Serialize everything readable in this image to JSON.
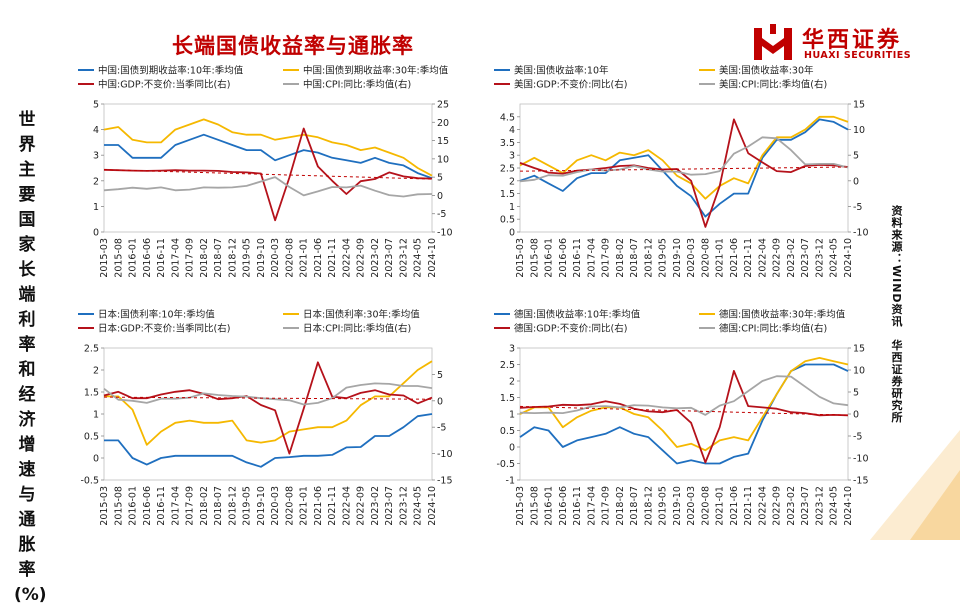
{
  "page": {
    "title": "长端国债收益率与通胀率",
    "side_label": "世界主要国家长端利率和经济增速与通胀率(%)",
    "source": "资料来源：WIND资讯　华西证券研究所"
  },
  "logo": {
    "name": "华西证券",
    "sub": "HUAXI SECURITIES",
    "icon": "huaxi-logo-icon",
    "color": "#c00000"
  },
  "colors": {
    "blue": "#1f6fbf",
    "yellow": "#f5b800",
    "red": "#b5121b",
    "gray": "#a6a6a6",
    "trend": "#c00000"
  },
  "chart_data": [
    {
      "type": "line",
      "id": "china",
      "x": [
        "2015-03",
        "2015-08",
        "2016-01",
        "2016-06",
        "2016-11",
        "2017-04",
        "2017-09",
        "2018-02",
        "2018-07",
        "2018-12",
        "2019-05",
        "2019-10",
        "2020-03",
        "2020-08",
        "2021-01",
        "2021-06",
        "2021-11",
        "2022-04",
        "2022-09",
        "2023-02",
        "2023-07",
        "2023-12",
        "2024-05",
        "2024-10"
      ],
      "ylim": [
        0,
        5
      ],
      "yticks": [
        0,
        1,
        2,
        3,
        4,
        5
      ],
      "y2lim": [
        -10,
        25
      ],
      "y2ticks": [
        -10,
        -5,
        0,
        5,
        10,
        15,
        20,
        25
      ],
      "series": [
        {
          "name": "中国:国债到期收益率:10年:季均值",
          "axis": "left",
          "color": "#1f6fbf",
          "values": [
            3.4,
            3.4,
            2.9,
            2.9,
            2.9,
            3.4,
            3.6,
            3.8,
            3.6,
            3.4,
            3.2,
            3.2,
            2.8,
            3.0,
            3.2,
            3.1,
            2.9,
            2.8,
            2.7,
            2.9,
            2.7,
            2.6,
            2.3,
            2.1
          ]
        },
        {
          "name": "中国:国债到期收益率:30年:季均值",
          "axis": "left",
          "color": "#f5b800",
          "values": [
            4.0,
            4.1,
            3.6,
            3.5,
            3.5,
            4.0,
            4.2,
            4.4,
            4.2,
            3.9,
            3.8,
            3.8,
            3.6,
            3.7,
            3.8,
            3.7,
            3.5,
            3.4,
            3.2,
            3.3,
            3.1,
            2.9,
            2.5,
            2.2
          ]
        },
        {
          "name": "中国:GDP:不变价:当季同比(右)",
          "axis": "right",
          "color": "#b5121b",
          "values": [
            7.0,
            6.9,
            6.8,
            6.7,
            6.8,
            6.9,
            6.8,
            6.8,
            6.7,
            6.4,
            6.3,
            6.0,
            -6.8,
            4.9,
            18.3,
            7.9,
            4.0,
            0.4,
            3.9,
            4.5,
            6.3,
            5.2,
            4.7,
            4.6
          ]
        },
        {
          "name": "中国:CPI:同比:季均值(右)",
          "axis": "right",
          "color": "#a6a6a6",
          "values": [
            1.4,
            1.7,
            2.1,
            1.8,
            2.2,
            1.4,
            1.6,
            2.2,
            2.1,
            2.2,
            2.6,
            3.8,
            5.0,
            2.3,
            0.0,
            1.1,
            2.3,
            2.2,
            2.7,
            1.3,
            0.1,
            -0.3,
            0.3,
            0.4
          ]
        }
      ]
    },
    {
      "type": "line",
      "id": "us",
      "x": [
        "2015-03",
        "2015-08",
        "2016-01",
        "2016-06",
        "2016-11",
        "2017-04",
        "2017-09",
        "2018-02",
        "2018-07",
        "2018-12",
        "2019-05",
        "2019-10",
        "2020-03",
        "2020-08",
        "2021-01",
        "2021-06",
        "2021-11",
        "2022-04",
        "2022-09",
        "2023-02",
        "2023-07",
        "2023-12",
        "2024-05",
        "2024-10"
      ],
      "ylim": [
        0,
        5
      ],
      "yticks": [
        0,
        0.5,
        1,
        1.5,
        2,
        2.5,
        3,
        3.5,
        4,
        4.5
      ],
      "y2lim": [
        -10,
        15
      ],
      "y2ticks": [
        -10,
        -5,
        0,
        5,
        10,
        15
      ],
      "series": [
        {
          "name": "美国:国债收益率:10年",
          "axis": "left",
          "color": "#1f6fbf",
          "values": [
            2.0,
            2.2,
            1.9,
            1.6,
            2.1,
            2.3,
            2.3,
            2.8,
            2.9,
            3.0,
            2.4,
            1.8,
            1.4,
            0.6,
            1.1,
            1.5,
            1.5,
            2.9,
            3.6,
            3.6,
            3.9,
            4.4,
            4.3,
            4.0
          ]
        },
        {
          "name": "美国:国债收益率:30年",
          "axis": "left",
          "color": "#f5b800",
          "values": [
            2.6,
            2.9,
            2.6,
            2.3,
            2.8,
            3.0,
            2.8,
            3.1,
            3.0,
            3.2,
            2.8,
            2.2,
            1.9,
            1.3,
            1.8,
            2.1,
            1.9,
            3.0,
            3.7,
            3.7,
            4.0,
            4.5,
            4.5,
            4.3
          ]
        },
        {
          "name": "美国:GDP:不变价:同比(右)",
          "axis": "right",
          "color": "#b5121b",
          "values": [
            3.5,
            2.5,
            1.6,
            1.4,
            2.0,
            2.2,
            2.5,
            2.9,
            3.0,
            2.5,
            2.2,
            2.3,
            0.0,
            -9.0,
            -1.0,
            12.0,
            5.4,
            3.6,
            1.9,
            1.7,
            2.9,
            3.1,
            3.0,
            2.7
          ]
        },
        {
          "name": "美国:CPI:同比:季均值(右)",
          "axis": "right",
          "color": "#a6a6a6",
          "values": [
            -0.1,
            0.2,
            1.1,
            1.0,
            1.7,
            2.2,
            2.0,
            2.2,
            2.9,
            2.2,
            1.8,
            1.8,
            1.2,
            1.3,
            1.9,
            5.3,
            6.7,
            8.5,
            8.3,
            6.0,
            3.2,
            3.3,
            3.3,
            2.6
          ]
        }
      ]
    },
    {
      "type": "line",
      "id": "japan",
      "x": [
        "2015-03",
        "2015-08",
        "2016-01",
        "2016-06",
        "2016-11",
        "2017-04",
        "2017-09",
        "2018-02",
        "2018-07",
        "2018-12",
        "2019-05",
        "2019-10",
        "2020-03",
        "2020-08",
        "2021-01",
        "2021-06",
        "2021-11",
        "2022-04",
        "2022-09",
        "2023-02",
        "2023-07",
        "2023-12",
        "2024-05",
        "2024-10"
      ],
      "ylim": [
        -0.5,
        2.5
      ],
      "yticks": [
        -0.5,
        0,
        0.5,
        1,
        1.5,
        2,
        2.5
      ],
      "y2lim": [
        -15,
        10
      ],
      "y2ticks": [
        -15,
        -10,
        -5,
        0,
        5
      ],
      "series": [
        {
          "name": "日本:国债利率:10年:季均值",
          "axis": "left",
          "color": "#1f6fbf",
          "values": [
            0.4,
            0.4,
            0.0,
            -0.15,
            0.0,
            0.05,
            0.05,
            0.05,
            0.05,
            0.05,
            -0.1,
            -0.2,
            0.0,
            0.02,
            0.05,
            0.05,
            0.07,
            0.24,
            0.25,
            0.5,
            0.5,
            0.7,
            0.95,
            1.0
          ]
        },
        {
          "name": "日本:国债利率:30年:季均值",
          "axis": "left",
          "color": "#f5b800",
          "values": [
            1.4,
            1.4,
            1.1,
            0.3,
            0.6,
            0.8,
            0.85,
            0.8,
            0.8,
            0.85,
            0.4,
            0.35,
            0.4,
            0.6,
            0.65,
            0.7,
            0.7,
            0.85,
            1.2,
            1.4,
            1.4,
            1.7,
            2.0,
            2.2
          ]
        },
        {
          "name": "日本:GDP:不变价:当季同比(右)",
          "axis": "right",
          "color": "#b5121b",
          "values": [
            1.0,
            1.7,
            0.5,
            0.5,
            1.2,
            1.7,
            2.0,
            1.3,
            0.3,
            0.5,
            0.9,
            -0.8,
            -1.8,
            -10.0,
            -1.5,
            7.3,
            0.8,
            0.5,
            1.5,
            2.0,
            1.2,
            1.0,
            -0.5,
            0.6
          ]
        },
        {
          "name": "日本:CPI:同比:季均值(右)",
          "axis": "right",
          "color": "#a6a6a6",
          "values": [
            2.3,
            0.2,
            0.0,
            -0.4,
            0.4,
            0.4,
            0.6,
            1.4,
            1.1,
            0.9,
            0.8,
            0.5,
            0.3,
            0.1,
            -0.7,
            -0.4,
            0.5,
            2.5,
            3.0,
            3.3,
            3.2,
            2.8,
            2.8,
            2.4
          ]
        }
      ]
    },
    {
      "type": "line",
      "id": "germany",
      "x": [
        "2015-03",
        "2015-08",
        "2016-01",
        "2016-06",
        "2016-11",
        "2017-04",
        "2017-09",
        "2018-02",
        "2018-07",
        "2018-12",
        "2019-05",
        "2019-10",
        "2020-03",
        "2020-08",
        "2021-01",
        "2021-06",
        "2021-11",
        "2022-04",
        "2022-09",
        "2023-02",
        "2023-07",
        "2023-12",
        "2024-05",
        "2024-10"
      ],
      "ylim": [
        -1,
        3
      ],
      "yticks": [
        -1,
        -0.5,
        0,
        0.5,
        1,
        1.5,
        2,
        2.5,
        3
      ],
      "y2lim": [
        -15,
        15
      ],
      "y2ticks": [
        -15,
        -10,
        -5,
        0,
        5,
        10,
        15
      ],
      "series": [
        {
          "name": "德国:国债收益率:10年:季均值",
          "axis": "left",
          "color": "#1f6fbf",
          "values": [
            0.3,
            0.6,
            0.5,
            0.0,
            0.2,
            0.3,
            0.4,
            0.6,
            0.4,
            0.3,
            -0.1,
            -0.5,
            -0.4,
            -0.5,
            -0.5,
            -0.3,
            -0.2,
            0.8,
            1.6,
            2.3,
            2.5,
            2.5,
            2.5,
            2.3
          ]
        },
        {
          "name": "德国:国债收益率:30年:季均值",
          "axis": "left",
          "color": "#f5b800",
          "values": [
            1.0,
            1.2,
            1.2,
            0.6,
            0.9,
            1.1,
            1.2,
            1.2,
            1.0,
            0.9,
            0.5,
            0.0,
            0.1,
            -0.1,
            0.2,
            0.3,
            0.2,
            0.9,
            1.6,
            2.3,
            2.6,
            2.7,
            2.6,
            2.5
          ]
        },
        {
          "name": "德国:GDP:不变价:同比(右)",
          "axis": "right",
          "color": "#b5121b",
          "values": [
            1.4,
            1.6,
            1.7,
            2.1,
            2.0,
            2.2,
            2.9,
            2.3,
            1.2,
            0.6,
            0.4,
            0.9,
            -2.0,
            -11.0,
            -3.0,
            9.8,
            1.8,
            1.5,
            1.2,
            0.4,
            0.2,
            -0.3,
            -0.2,
            -0.3
          ]
        },
        {
          "name": "德国:CPI:同比:季均值(右)",
          "axis": "right",
          "color": "#a6a6a6",
          "values": [
            0.3,
            0.2,
            0.3,
            0.2,
            0.8,
            1.7,
            1.8,
            1.5,
            2.0,
            1.9,
            1.5,
            1.3,
            1.4,
            -0.2,
            1.9,
            2.9,
            5.2,
            7.5,
            8.6,
            8.5,
            6.2,
            3.9,
            2.4,
            2.0
          ]
        }
      ]
    }
  ]
}
